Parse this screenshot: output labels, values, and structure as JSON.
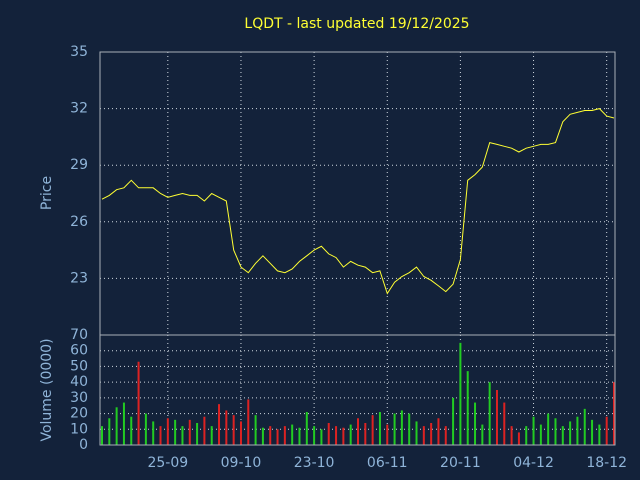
{
  "chart_data": [
    {
      "type": "line",
      "title": "LQDT - last updated 19/12/2025",
      "ylabel": "Price",
      "color": "#ffff33",
      "categories": [
        null,
        null,
        null,
        null,
        null,
        null,
        null,
        null,
        null,
        "25-09",
        null,
        null,
        null,
        null,
        null,
        null,
        null,
        null,
        null,
        "09-10",
        null,
        null,
        null,
        null,
        null,
        null,
        null,
        null,
        null,
        "23-10",
        null,
        null,
        null,
        null,
        null,
        null,
        null,
        null,
        null,
        "06-11",
        null,
        null,
        null,
        null,
        null,
        null,
        null,
        null,
        null,
        "20-11",
        null,
        null,
        null,
        null,
        null,
        null,
        null,
        null,
        null,
        "04-12",
        null,
        null,
        null,
        null,
        null,
        null,
        null,
        null,
        null,
        "18-12",
        null
      ],
      "values": [
        27.2,
        27.4,
        27.7,
        27.8,
        28.2,
        27.8,
        27.8,
        27.8,
        27.5,
        27.3,
        27.4,
        27.5,
        27.4,
        27.4,
        27.1,
        27.5,
        27.3,
        27.1,
        24.5,
        23.6,
        23.3,
        23.8,
        24.2,
        23.8,
        23.4,
        23.3,
        23.5,
        23.9,
        24.2,
        24.5,
        24.7,
        24.3,
        24.1,
        23.6,
        23.9,
        23.7,
        23.6,
        23.3,
        23.4,
        22.2,
        22.8,
        23.1,
        23.3,
        23.6,
        23.1,
        22.9,
        22.6,
        22.3,
        22.7,
        24.0,
        28.2,
        28.5,
        28.9,
        30.2,
        30.1,
        30.0,
        29.9,
        29.7,
        29.9,
        30.0,
        30.1,
        30.1,
        30.2,
        31.3,
        31.7,
        31.8,
        31.9,
        31.9,
        32.0,
        31.6,
        31.5
      ],
      "ylim": [
        20,
        35
      ],
      "yticks": [
        23,
        26,
        29,
        32,
        35
      ],
      "grid": true
    },
    {
      "type": "bar",
      "ylabel": "Volume (0000)",
      "up_color": "#22cc22",
      "down_color": "#dd2222",
      "values": [
        12,
        17,
        24,
        27,
        18,
        53,
        20,
        15,
        12,
        17,
        16,
        12,
        16,
        14,
        18,
        12,
        26,
        22,
        19,
        15,
        29,
        19,
        11,
        12,
        10,
        12,
        13,
        11,
        21,
        12,
        10,
        14,
        12,
        11,
        13,
        17,
        14,
        19,
        21,
        13,
        20,
        22,
        20,
        15,
        12,
        14,
        17,
        12,
        30,
        65,
        47,
        27,
        13,
        40,
        35,
        27,
        12,
        8,
        12,
        18,
        13,
        20,
        17,
        12,
        15,
        18,
        23,
        16,
        13,
        18,
        40
      ],
      "ylim": [
        0,
        70
      ],
      "yticks": [
        0,
        10,
        20,
        30,
        40,
        50,
        60,
        70
      ],
      "grid": true
    }
  ]
}
